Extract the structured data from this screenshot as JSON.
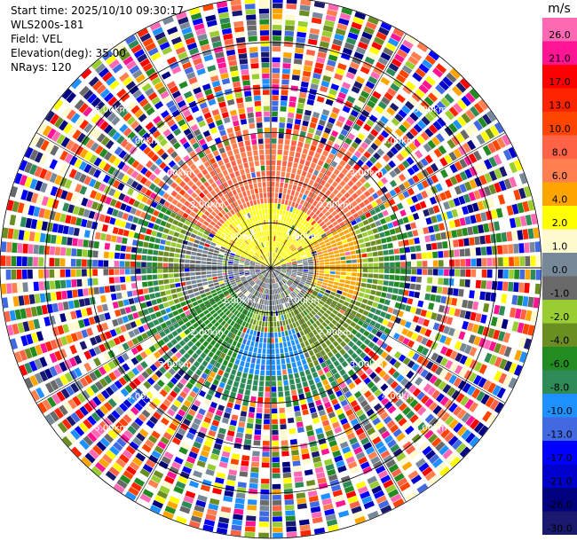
{
  "info": {
    "start_time": "Start time: 2025/10/10 09:30:17",
    "instrument": "WLS200s-181",
    "field": "Field: VEL",
    "elevation": "Elevation(deg): 35.00",
    "nrays": "NRays: 120"
  },
  "chart_data": {
    "type": "polar_ppi",
    "field": "VEL",
    "elevation_deg": 35.0,
    "n_rays": 120,
    "max_range_km": 6.0,
    "range_rings_km": [
      1,
      2,
      3,
      4,
      5,
      6
    ],
    "ring_labels": [
      "1.00km",
      "2.00km",
      "3.00km",
      "4.00km",
      "5.00km"
    ],
    "colorbar": {
      "unit": "m/s",
      "ticks": [
        "26.0",
        "21.0",
        "17.0",
        "13.0",
        "10.0",
        "8.0",
        "6.0",
        "4.0",
        "2.0",
        "1.0",
        "0.0",
        "-1.0",
        "-2.0",
        "-4.0",
        "-6.0",
        "-8.0",
        "-10.0",
        "-13.0",
        "-17.0",
        "-21.0",
        "-26.0",
        "-30.0"
      ],
      "colors": [
        "#ff69b4",
        "#ff1493",
        "#ff0000",
        "#ff2400",
        "#ff4500",
        "#ff6347",
        "#ff7f50",
        "#ffa500",
        "#ffff00",
        "#fffacd",
        "#778899",
        "#696969",
        "#9acd32",
        "#6b8e23",
        "#228b22",
        "#2e8b57",
        "#1e90ff",
        "#4169e1",
        "#0000ff",
        "#0000cd",
        "#000080",
        "#191970"
      ]
    },
    "regions": [
      {
        "range_km": [
          0,
          0.9
        ],
        "azimuth_deg": [
          0,
          360
        ],
        "value": 0.0
      },
      {
        "range_km": [
          0,
          1.4
        ],
        "azimuth_deg": [
          290,
          75
        ],
        "value": 3.0
      },
      {
        "range_km": [
          1.4,
          3.2
        ],
        "azimuth_deg": [
          300,
          60
        ],
        "value": 8.0
      },
      {
        "range_km": [
          1.0,
          2.0
        ],
        "azimuth_deg": [
          60,
          110
        ],
        "value": 5.0
      },
      {
        "range_km": [
          1.0,
          2.0
        ],
        "azimuth_deg": [
          245,
          295
        ],
        "value": 0.0
      },
      {
        "range_km": [
          0.9,
          2.4
        ],
        "azimuth_deg": [
          110,
          160
        ],
        "value": -3.0
      },
      {
        "range_km": [
          0.9,
          2.4
        ],
        "azimuth_deg": [
          200,
          250
        ],
        "value": -5.0
      },
      {
        "range_km": [
          1.4,
          3.4
        ],
        "azimuth_deg": [
          160,
          200
        ],
        "value": -9.0
      },
      {
        "range_km": [
          2.4,
          3.6
        ],
        "azimuth_deg": [
          110,
          250
        ],
        "value": -7.0
      }
    ],
    "far_range_km": [
      3.2,
      6.0
    ],
    "far_range_note": "noise"
  }
}
